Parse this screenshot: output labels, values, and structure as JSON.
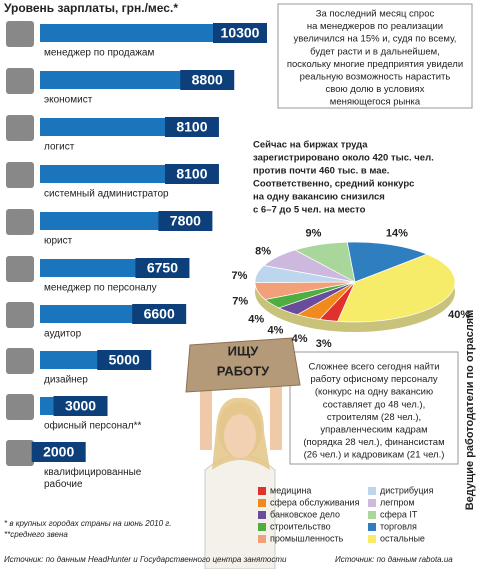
{
  "chart_data": [
    {
      "type": "hbar",
      "title": "Уровень зарплаты, грн./мес.*",
      "categories": [
        "менеджер по продажам",
        "экономист",
        "логист",
        "системный администратор",
        "юрист",
        "менеджер по персоналу",
        "аудитор",
        "дизайнер",
        "офисный персонал**",
        "квалифицированные рабочие"
      ],
      "values": [
        10300,
        8800,
        8100,
        8100,
        7800,
        6750,
        6600,
        5000,
        3000,
        2000
      ],
      "color": "#1b75bc",
      "label_color": "#0d3f7a",
      "notes": [
        "* в крупных городах страны на июнь 2010 г.",
        "**среднего звена"
      ],
      "source": "Источник: по данным HeadHunter и Государственного центра занятости"
    },
    {
      "type": "pie",
      "title": "Ведущие работодатели по отраслям",
      "categories": [
        "медицина",
        "сфера обслуживания",
        "банковское дело",
        "строительство",
        "промышленность",
        "дистрибуция",
        "легпром",
        "сфера IT",
        "торговля",
        "остальные"
      ],
      "values": [
        3,
        4,
        4,
        4,
        7,
        7,
        8,
        9,
        14,
        40
      ],
      "value_labels": [
        "3%",
        "4%",
        "4%",
        "4%",
        "7%",
        "7%",
        "8%",
        "9%",
        "14%",
        "40%"
      ],
      "colors": [
        "#e0312c",
        "#f08a1c",
        "#6a4c9c",
        "#4fae3f",
        "#f2a07a",
        "#bcd6ee",
        "#cdb8de",
        "#a9d69a",
        "#2f7ec0",
        "#f7ec6a"
      ],
      "source": "Источник: по данным rabota.ua"
    }
  ],
  "callouts": [
    [
      "За последний месяц спрос",
      "на менеджеров по реализации",
      "увеличился на 15% и, судя по всему,",
      "будет расти и в дальнейшем,",
      "поскольку многие предприятия увидели",
      "реальную возможность нарастить",
      "свою долю в условиях",
      "меняющегося рынка"
    ],
    [
      "Сейчас на биржах труда",
      "зарегистрировано около 420 тыс. чел.",
      "против почти 460 тыс. в мае.",
      "Соответственно, средний  конкурс",
      "на одну вакансию снизился",
      "с 6–7  до 5 чел. на место"
    ],
    [
      "Сложнее всего сегодня найти",
      "работу офисному персоналу",
      "(конкурс на одну вакансию",
      "составляет до 48 чел.),",
      "строителям (28 чел.),",
      "управленческим кадрам",
      "(порядка 28 чел.), финансистам",
      "(26 чел.) и кадровикам (21 чел.)"
    ]
  ],
  "sign": [
    "ИЩУ",
    "РАБОТУ"
  ]
}
